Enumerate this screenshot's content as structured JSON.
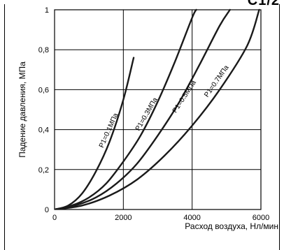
{
  "header_fragment": {
    "left": "",
    "right": "C1/2"
  },
  "chart_data": {
    "type": "line",
    "title": "",
    "xlabel": "Расход воздуха, Нл/мин",
    "ylabel": "Падение давления, МПа",
    "xlim": [
      0,
      6000
    ],
    "ylim": [
      0,
      1
    ],
    "x_ticks": [
      {
        "value": 0,
        "label": "0"
      },
      {
        "value": 2000,
        "label": "2000"
      },
      {
        "value": 4000,
        "label": "4000"
      },
      {
        "value": 6000,
        "label": "6000"
      }
    ],
    "y_ticks": [
      {
        "value": 0.2,
        "label": "0,2"
      },
      {
        "value": 0.4,
        "label": "0,4"
      },
      {
        "value": 0.6,
        "label": "0,6"
      },
      {
        "value": 0.8,
        "label": "0,8"
      },
      {
        "value": 1.0,
        "label": "1"
      }
    ],
    "grid": true,
    "series": [
      {
        "name": "P1=0.1МПа",
        "x": [
          0,
          400,
          800,
          1200,
          1600,
          2000,
          2300
        ],
        "y": [
          0,
          0.02,
          0.08,
          0.19,
          0.34,
          0.55,
          0.76
        ]
      },
      {
        "name": "P1=0.3МПа",
        "x": [
          0,
          500,
          1000,
          1500,
          2000,
          2500,
          3000,
          3500,
          4000,
          4120
        ],
        "y": [
          0,
          0.02,
          0.06,
          0.13,
          0.24,
          0.37,
          0.54,
          0.74,
          0.96,
          1.0
        ]
      },
      {
        "name": "P1=0.5МПа",
        "x": [
          0,
          600,
          1200,
          1800,
          2400,
          3000,
          3600,
          4200,
          4800,
          5100
        ],
        "y": [
          0,
          0.02,
          0.06,
          0.13,
          0.23,
          0.37,
          0.53,
          0.72,
          0.92,
          1.0
        ]
      },
      {
        "name": "P1=0.7МПа",
        "x": [
          0,
          800,
          1600,
          2400,
          3200,
          4000,
          4800,
          5600,
          5950
        ],
        "y": [
          0,
          0.02,
          0.07,
          0.15,
          0.27,
          0.42,
          0.6,
          0.82,
          1.0
        ]
      }
    ]
  }
}
